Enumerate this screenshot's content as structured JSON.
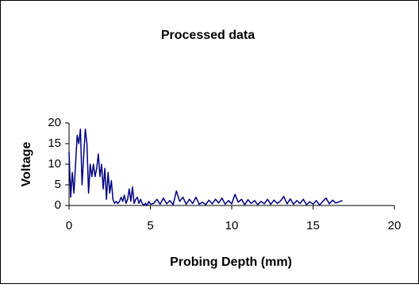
{
  "chart_data": {
    "type": "line",
    "title": "Processed data",
    "xlabel": "Probing Depth (mm)",
    "ylabel": "Voltage",
    "xlim": [
      0,
      20
    ],
    "ylim": [
      0,
      20
    ],
    "xticks": [
      0,
      5,
      10,
      15,
      20
    ],
    "yticks": [
      0,
      5,
      10,
      15,
      20
    ],
    "grid": false,
    "x": [
      0.0,
      0.1,
      0.2,
      0.3,
      0.4,
      0.5,
      0.6,
      0.7,
      0.8,
      0.9,
      1.0,
      1.1,
      1.2,
      1.3,
      1.4,
      1.5,
      1.6,
      1.7,
      1.8,
      1.9,
      2.0,
      2.1,
      2.2,
      2.3,
      2.4,
      2.5,
      2.6,
      2.7,
      2.8,
      2.9,
      3.0,
      3.1,
      3.2,
      3.3,
      3.4,
      3.5,
      3.6,
      3.7,
      3.8,
      3.9,
      4.0,
      4.1,
      4.2,
      4.3,
      4.4,
      4.5,
      4.6,
      4.7,
      4.8,
      4.9,
      5.0,
      5.2,
      5.4,
      5.6,
      5.8,
      6.0,
      6.2,
      6.4,
      6.6,
      6.8,
      7.0,
      7.2,
      7.4,
      7.6,
      7.8,
      8.0,
      8.2,
      8.4,
      8.6,
      8.8,
      9.0,
      9.2,
      9.4,
      9.6,
      9.8,
      10.0,
      10.2,
      10.4,
      10.6,
      10.8,
      11.0,
      11.2,
      11.4,
      11.6,
      11.8,
      12.0,
      12.2,
      12.4,
      12.6,
      12.8,
      13.0,
      13.2,
      13.4,
      13.6,
      13.8,
      14.0,
      14.2,
      14.4,
      14.6,
      14.8,
      15.0,
      15.2,
      15.4,
      15.6,
      15.8,
      16.0,
      16.2,
      16.4,
      16.6,
      16.8
    ],
    "series": [
      {
        "name": "Voltage",
        "color": "#000080",
        "values": [
          13,
          2,
          8,
          3,
          10,
          17,
          15,
          18.5,
          5,
          12,
          18.5,
          15,
          3,
          10,
          7,
          10,
          7,
          9,
          12.5,
          7,
          10,
          4,
          9,
          1.5,
          8,
          3,
          6,
          1.5,
          0.5,
          1,
          0.5,
          1,
          2,
          1,
          2.5,
          0.5,
          1.5,
          4,
          1,
          4.5,
          0.5,
          1.5,
          2,
          0.5,
          1.5,
          0.5,
          0,
          0.5,
          0,
          1,
          0.3,
          0.5,
          1.5,
          0.3,
          1.8,
          0.4,
          1.2,
          0.2,
          3.5,
          1.0,
          2.0,
          0.3,
          1.5,
          0.5,
          2.0,
          0.3,
          0.8,
          0.2,
          1.3,
          0.4,
          1.5,
          0.6,
          1.8,
          0.3,
          1.2,
          0.4,
          2.7,
          0.8,
          1.5,
          0.2,
          1.4,
          0.5,
          1.2,
          0.2,
          1.0,
          0.4,
          1.5,
          0.3,
          1.3,
          0.5,
          1.1,
          2.2,
          0.4,
          1.6,
          0.3,
          1.2,
          0.5,
          1.5,
          0.2,
          0.9,
          0.3,
          1.2,
          0.1,
          1.0,
          1.8,
          0.4,
          1.3,
          0.6,
          0.9,
          1.2
        ]
      }
    ]
  }
}
